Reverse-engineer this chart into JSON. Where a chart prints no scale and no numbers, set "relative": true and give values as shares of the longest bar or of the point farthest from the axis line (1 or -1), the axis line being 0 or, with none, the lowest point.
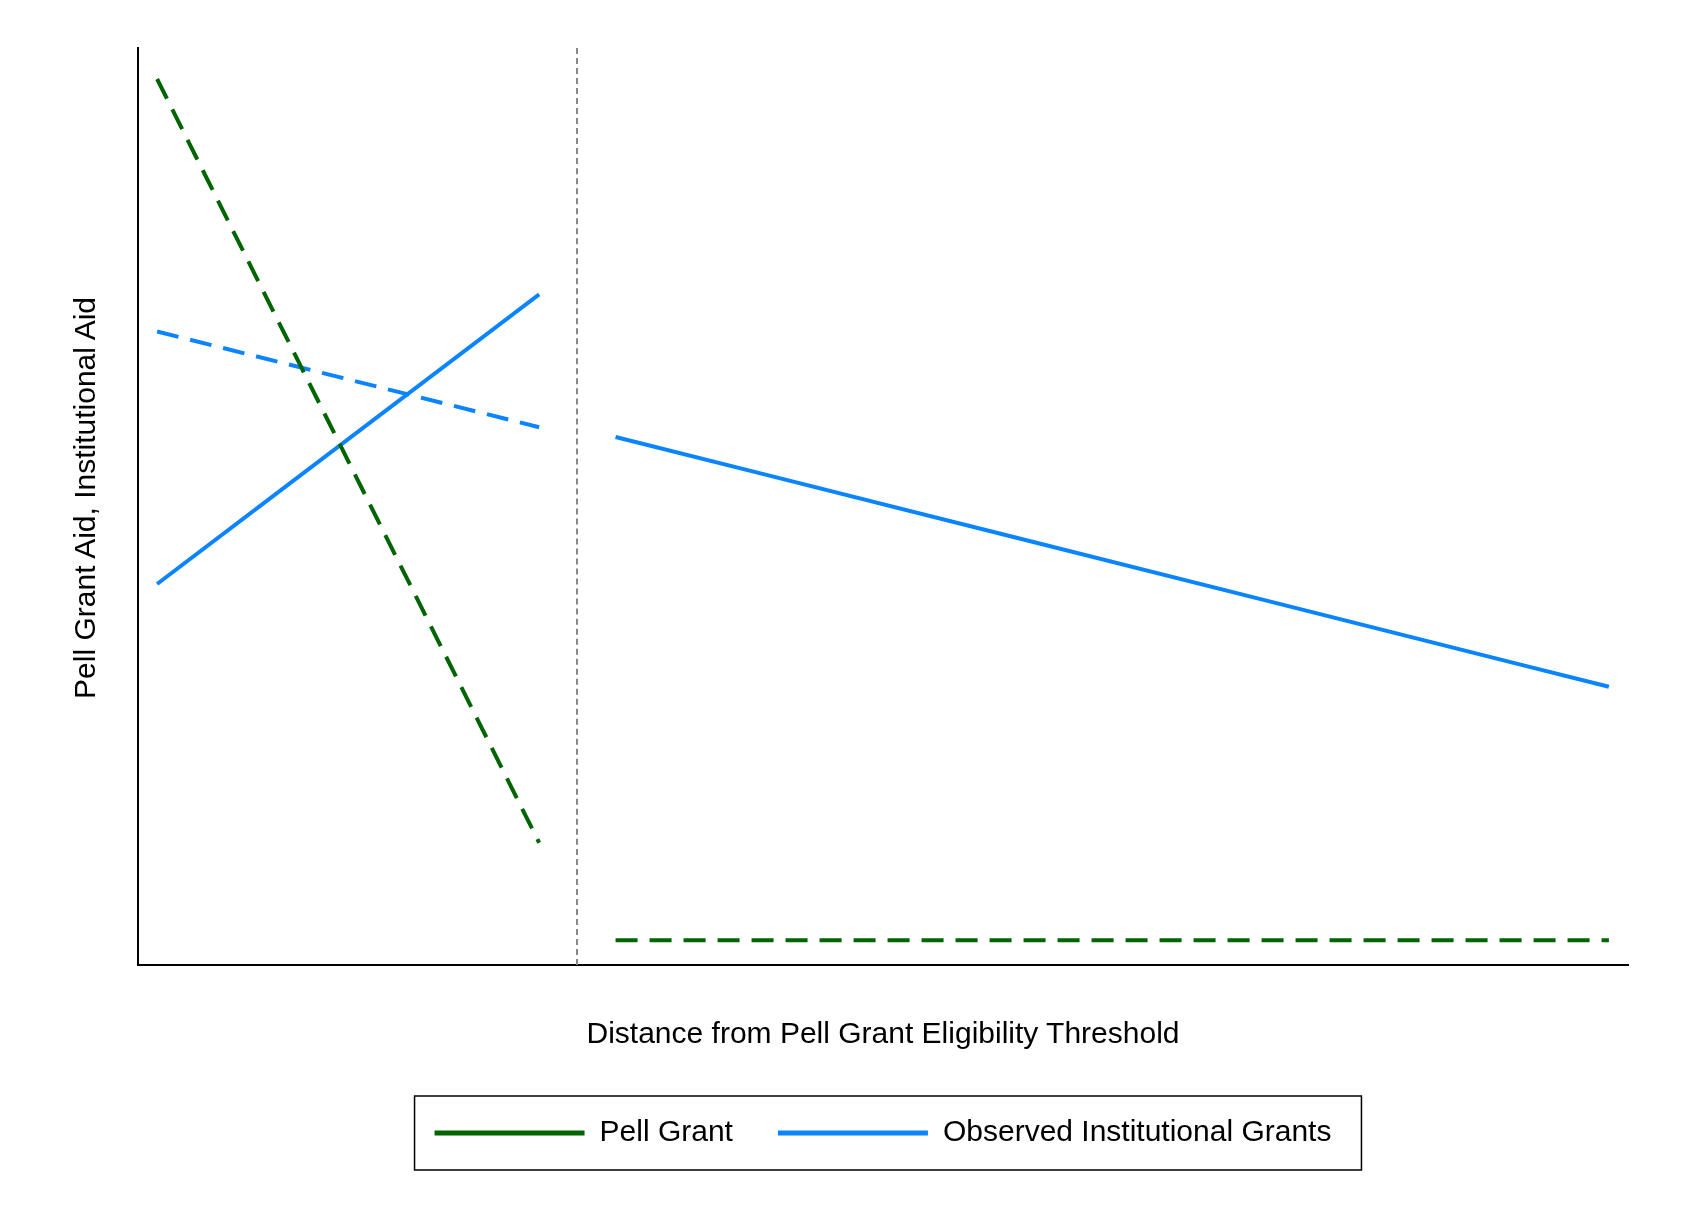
{
  "chart_data": {
    "type": "line",
    "relative": true,
    "xlabel": "Distance from Pell Grant Eligibility Threshold",
    "ylabel": "Pell Grant Aid, Institutional Aid",
    "categories": [
      null,
      null,
      null,
      null,
      null,
      null,
      null,
      null,
      null,
      null,
      null,
      null,
      null,
      null,
      null,
      null,
      null,
      null,
      null,
      null,
      null,
      null,
      null,
      null,
      null,
      null,
      null,
      null,
      null,
      null,
      null,
      null,
      null,
      null,
      null,
      null,
      null,
      null,
      null
    ],
    "grid": false,
    "legend": "bottom",
    "marker": "none",
    "series": [
      {
        "name": "Pell Grant",
        "color": "#006400",
        "line_style": "dashed",
        "values": [
          1.0,
          null,
          null,
          null,
          null,
          null,
          null,
          null,
          null,
          null,
          0.138,
          null,
          null,
          null,
          null,
          null,
          null,
          null,
          null,
          null,
          null,
          null,
          null,
          null,
          null,
          null,
          null,
          null,
          null,
          null,
          null,
          null,
          null,
          null,
          null,
          null,
          null,
          null,
          null
        ]
      },
      {
        "name": "Observed Institutional Grants",
        "color": "#0a84ff",
        "line_style": "solid",
        "values": [
          0.43,
          null,
          null,
          null,
          null,
          null,
          null,
          null,
          null,
          null,
          0.757,
          null,
          null,
          null,
          null,
          null,
          null,
          null,
          null,
          null,
          null,
          null,
          null,
          null,
          null,
          null,
          null,
          null,
          null,
          null,
          null,
          null,
          null,
          null,
          null,
          null,
          null,
          null,
          null
        ]
      },
      {
        "color": "#006400",
        "line_style": "dashed",
        "values": [
          null,
          null,
          null,
          null,
          null,
          null,
          null,
          null,
          null,
          null,
          null,
          null,
          0.028,
          null,
          null,
          null,
          null,
          null,
          null,
          null,
          null,
          null,
          null,
          null,
          null,
          null,
          null,
          null,
          null,
          null,
          null,
          null,
          null,
          null,
          null,
          null,
          null,
          null,
          0.028
        ]
      },
      {
        "color": "#0a84ff",
        "line_style": "solid",
        "values": [
          null,
          null,
          null,
          null,
          null,
          null,
          null,
          null,
          null,
          null,
          null,
          null,
          0.596,
          null,
          null,
          null,
          null,
          null,
          null,
          null,
          null,
          null,
          null,
          null,
          null,
          null,
          null,
          null,
          null,
          null,
          null,
          null,
          null,
          null,
          null,
          null,
          null,
          null,
          0.314
        ]
      },
      {
        "color": "#0a84ff",
        "line_style": "dashed",
        "values": [
          0.715,
          null,
          null,
          null,
          null,
          null,
          null,
          null,
          null,
          null,
          0.607,
          null,
          null,
          null,
          null,
          null,
          null,
          null,
          null,
          null,
          null,
          null,
          null,
          null,
          null,
          null,
          null,
          null,
          null,
          null,
          null,
          null,
          null,
          null,
          null,
          null,
          null,
          null,
          null
        ]
      }
    ]
  }
}
